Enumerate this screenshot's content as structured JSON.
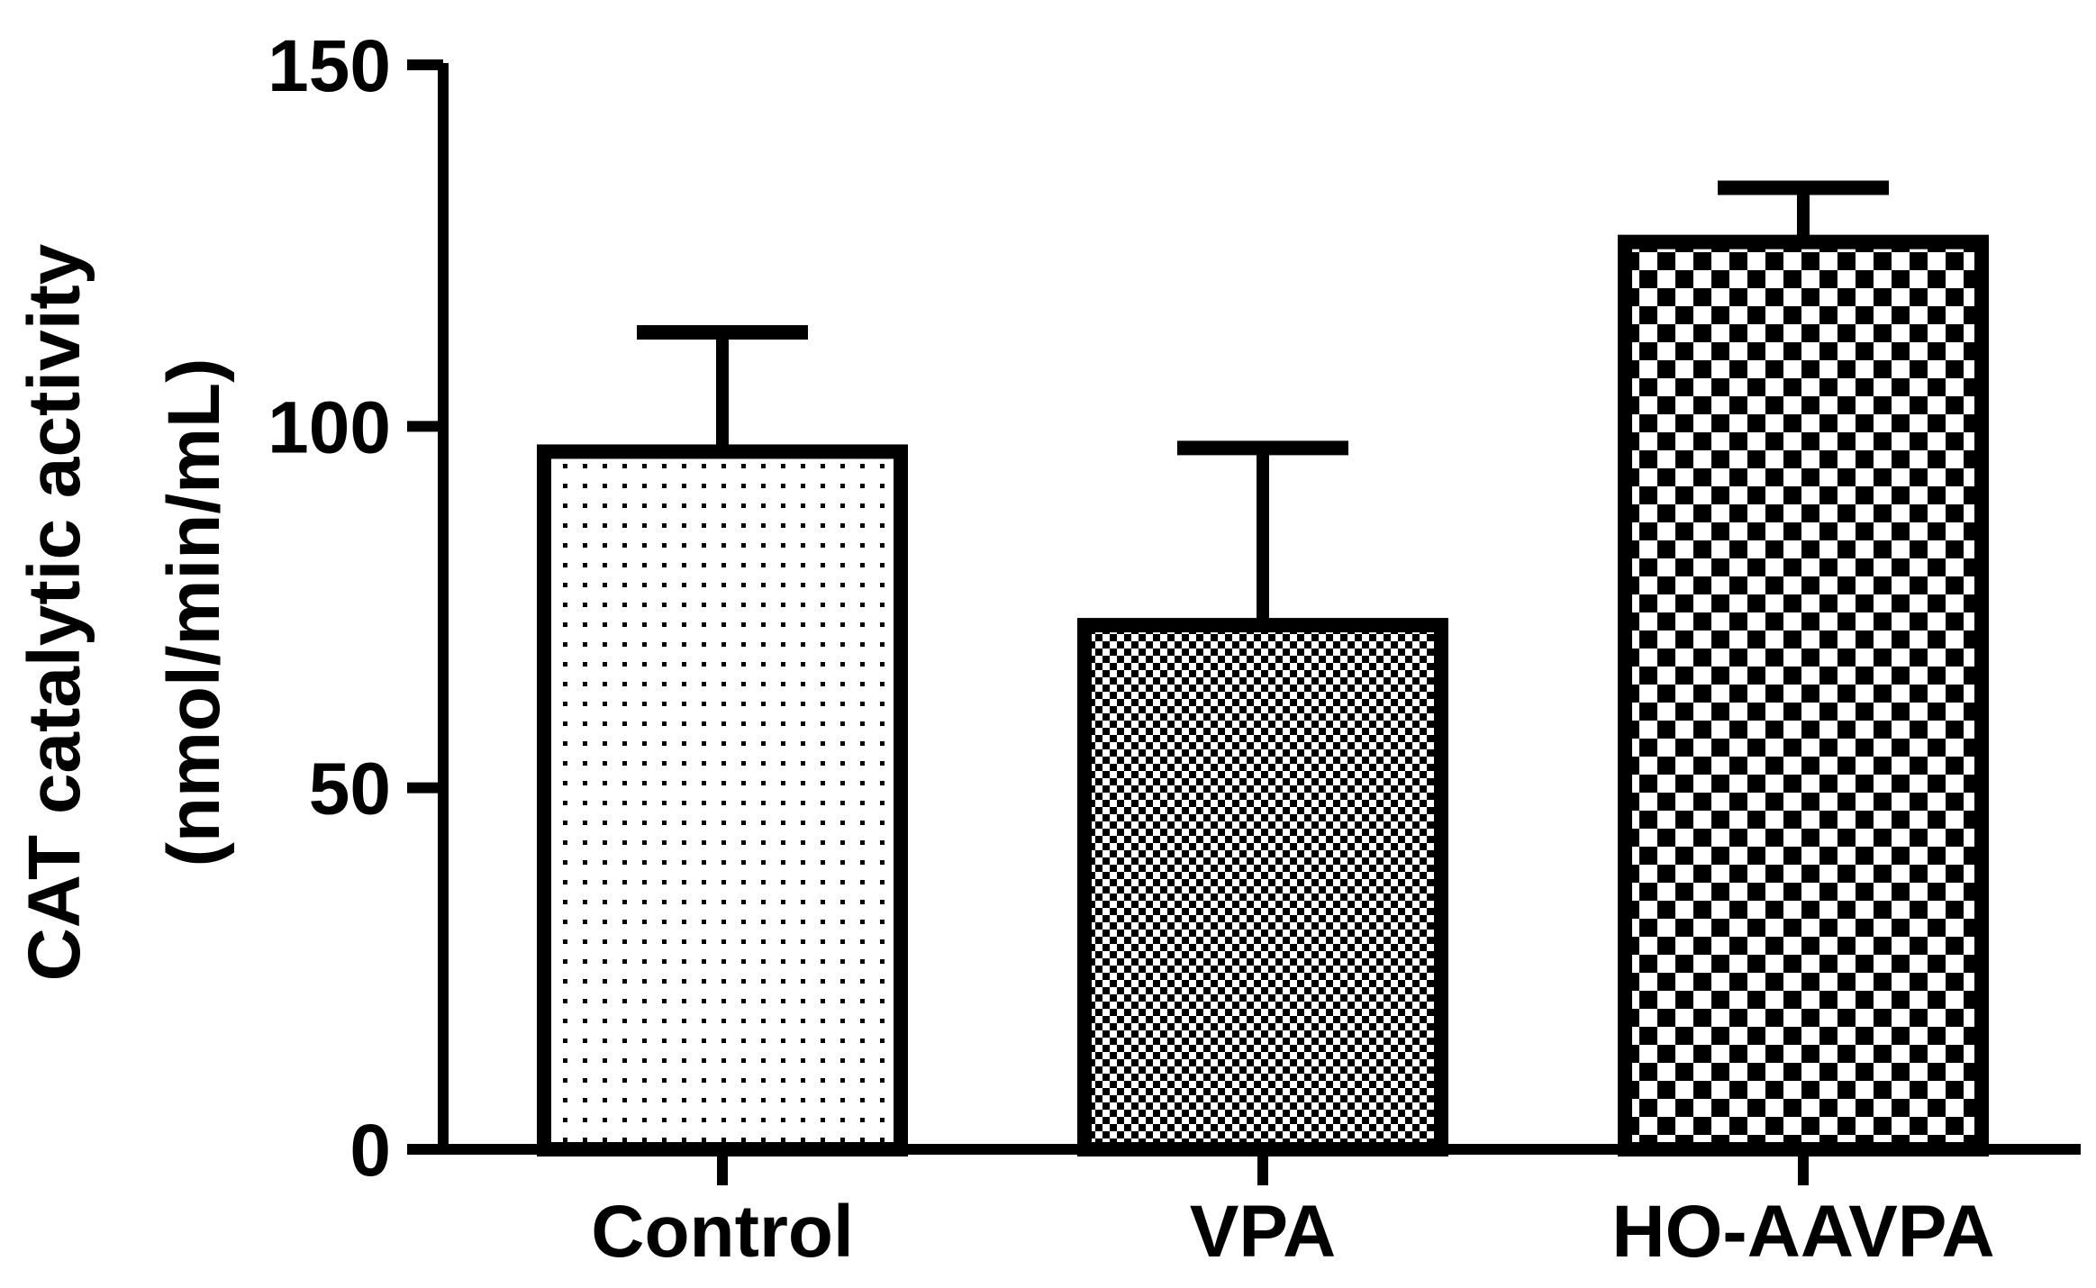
{
  "chart_data": {
    "type": "bar",
    "title": "",
    "xlabel": "",
    "ylabel_lines": [
      "CAT catalytic activity",
      "(nmol/min/mL)"
    ],
    "categories": [
      "Control",
      "VPA",
      "HO-AAVPA"
    ],
    "values": [
      96.5,
      72.5,
      125.5
    ],
    "errors": [
      16.5,
      24.5,
      7.5
    ],
    "patterns": [
      "dots",
      "fine-checker",
      "coarse-checker"
    ],
    "ylim": [
      0,
      150
    ],
    "yticks": [
      0,
      50,
      100,
      150
    ],
    "grid": false,
    "legend": "none"
  },
  "colors": {
    "bar_fill": "#ffffff",
    "ink": "#000000"
  }
}
